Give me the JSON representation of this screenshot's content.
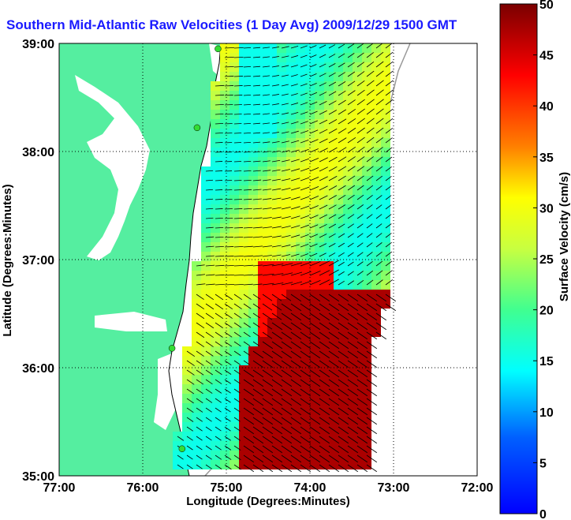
{
  "title": "Southern Mid-Atlantic Raw Velocities (1 Day Avg) 2009/12/29 1500 GMT",
  "map": {
    "xlabel": "Longitude (Degrees:Minutes)",
    "ylabel": "Latitude (Degrees:Minutes)",
    "x_ticks": [
      "77:00",
      "76:00",
      "75:00",
      "74:00",
      "73:00",
      "72:00"
    ],
    "y_ticks": [
      "35:00",
      "36:00",
      "37:00",
      "38:00",
      "39:00"
    ],
    "lon_range": [
      -77,
      -72
    ],
    "lat_range": [
      35,
      39
    ],
    "grid": "dotted",
    "land_color": "#55eea0",
    "water_color": "#ffffff"
  },
  "colorbar": {
    "label": "Surface Velocity (cm/s)",
    "ticks": [
      "0",
      "5",
      "10",
      "15",
      "20",
      "25",
      "30",
      "35",
      "40",
      "45",
      "50"
    ],
    "range": [
      0,
      50
    ],
    "colormap": "jet"
  },
  "stations": [
    {
      "name": "",
      "lon": -75.1,
      "lat": 38.95
    },
    {
      "name": "",
      "lon": -75.35,
      "lat": 38.22
    },
    {
      "name": "",
      "lon": -75.65,
      "lat": 36.18
    },
    {
      "name": "",
      "lon": -75.53,
      "lat": 35.25
    }
  ]
}
